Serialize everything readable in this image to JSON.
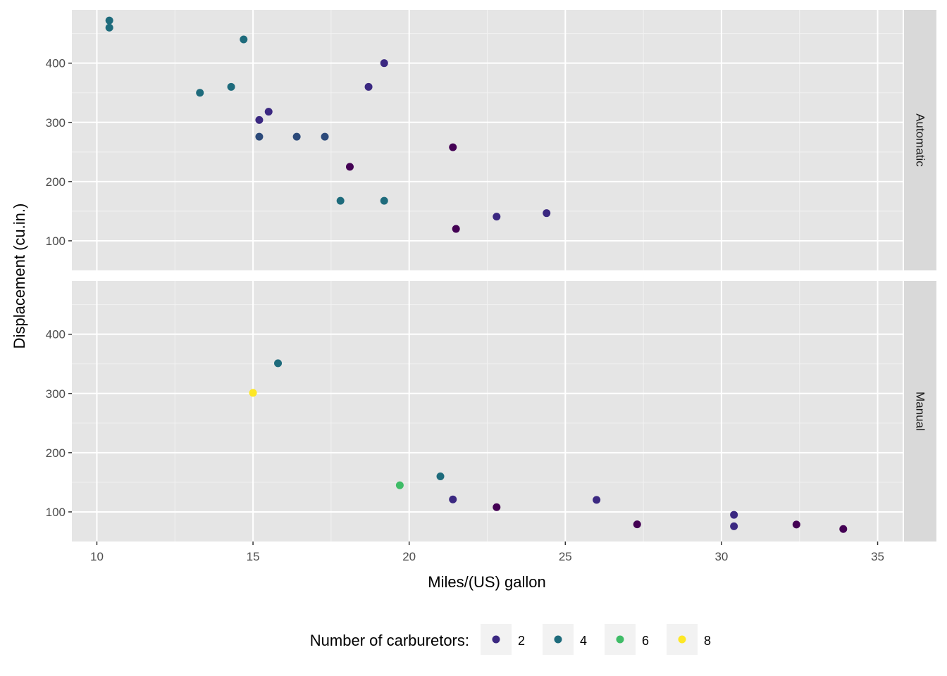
{
  "chart_data": {
    "type": "scatter",
    "xlabel": "Miles/(US) gallon",
    "ylabel": "Displacement (cu.in.)",
    "xlim": [
      9.2,
      35.8
    ],
    "ylim": [
      50,
      490
    ],
    "x_ticks": [
      10,
      15,
      20,
      25,
      30,
      35
    ],
    "y_ticks": [
      100,
      200,
      300,
      400
    ],
    "grid": true,
    "legend": {
      "title": "Number of carburetors:",
      "position": "bottom",
      "entries": [
        {
          "label": "2",
          "color": "#3b2881"
        },
        {
          "label": "4",
          "color": "#1e6b7c"
        },
        {
          "label": "6",
          "color": "#3fbc67"
        },
        {
          "label": "8",
          "color": "#fde725"
        }
      ]
    },
    "color_scale": {
      "1": "#440154",
      "2": "#3b2881",
      "3": "#2c4a7a",
      "4": "#1e6b7c",
      "6": "#3fbc67",
      "8": "#fde725"
    },
    "panels": [
      {
        "label": "Automatic",
        "points": [
          {
            "x": 21.4,
            "y": 258,
            "carb": 1
          },
          {
            "x": 18.7,
            "y": 360,
            "carb": 2
          },
          {
            "x": 18.1,
            "y": 225,
            "carb": 1
          },
          {
            "x": 14.3,
            "y": 360,
            "carb": 4
          },
          {
            "x": 24.4,
            "y": 146.7,
            "carb": 2
          },
          {
            "x": 22.8,
            "y": 140.8,
            "carb": 2
          },
          {
            "x": 19.2,
            "y": 167.6,
            "carb": 4
          },
          {
            "x": 17.8,
            "y": 167.6,
            "carb": 4
          },
          {
            "x": 16.4,
            "y": 275.8,
            "carb": 3
          },
          {
            "x": 17.3,
            "y": 275.8,
            "carb": 3
          },
          {
            "x": 15.2,
            "y": 275.8,
            "carb": 3
          },
          {
            "x": 10.4,
            "y": 472,
            "carb": 4
          },
          {
            "x": 10.4,
            "y": 460,
            "carb": 4
          },
          {
            "x": 14.7,
            "y": 440,
            "carb": 4
          },
          {
            "x": 21.5,
            "y": 120.1,
            "carb": 1
          },
          {
            "x": 15.5,
            "y": 318,
            "carb": 2
          },
          {
            "x": 15.2,
            "y": 304,
            "carb": 2
          },
          {
            "x": 13.3,
            "y": 350,
            "carb": 4
          },
          {
            "x": 19.2,
            "y": 400,
            "carb": 2
          }
        ]
      },
      {
        "label": "Manual",
        "points": [
          {
            "x": 21.0,
            "y": 160,
            "carb": 4
          },
          {
            "x": 22.8,
            "y": 108,
            "carb": 1
          },
          {
            "x": 32.4,
            "y": 78.7,
            "carb": 1
          },
          {
            "x": 30.4,
            "y": 75.7,
            "carb": 2
          },
          {
            "x": 33.9,
            "y": 71.1,
            "carb": 1
          },
          {
            "x": 27.3,
            "y": 79,
            "carb": 1
          },
          {
            "x": 26.0,
            "y": 120.3,
            "carb": 2
          },
          {
            "x": 30.4,
            "y": 95.1,
            "carb": 2
          },
          {
            "x": 15.8,
            "y": 351,
            "carb": 4
          },
          {
            "x": 19.7,
            "y": 145,
            "carb": 6
          },
          {
            "x": 15.0,
            "y": 301,
            "carb": 8
          },
          {
            "x": 21.4,
            "y": 121,
            "carb": 2
          }
        ]
      }
    ]
  }
}
